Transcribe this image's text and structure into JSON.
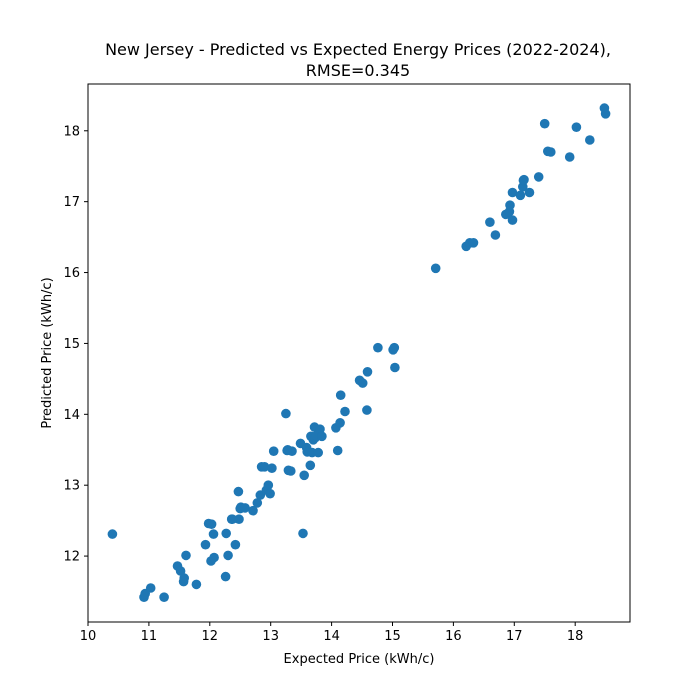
{
  "chart_data": {
    "type": "scatter",
    "title": "New Jersey - Predicted vs Expected Energy Prices (2022-2024),",
    "subtitle": "RMSE=0.345",
    "xlabel": "Expected Price (kWh/c)",
    "ylabel": "Predicted Price (kWh/c)",
    "xlim": [
      10.0,
      18.9
    ],
    "ylim": [
      11.07,
      18.66
    ],
    "xticks": [
      10,
      11,
      12,
      13,
      14,
      15,
      16,
      17,
      18
    ],
    "yticks": [
      12,
      13,
      14,
      15,
      16,
      17,
      18
    ],
    "grid": false,
    "marker_color": "#1f77b4",
    "series": [
      {
        "x": [
          10.4,
          10.92,
          10.94,
          11.03,
          11.25,
          11.47,
          11.52,
          11.57,
          11.58,
          11.61,
          11.78,
          11.93,
          11.98,
          12.02,
          12.03,
          12.06,
          12.07,
          12.26,
          12.27,
          12.3,
          12.36,
          12.42,
          12.47,
          12.48,
          12.5,
          12.51,
          12.58,
          12.71,
          12.78,
          12.83,
          12.85,
          12.9,
          12.93,
          12.96,
          12.99,
          13.02,
          13.05,
          13.25,
          13.29,
          13.28,
          13.33,
          13.35,
          13.27,
          13.49,
          13.55,
          13.59,
          13.6,
          13.65,
          13.66,
          13.68,
          13.7,
          13.72,
          13.73,
          13.75,
          13.78,
          13.81,
          13.84,
          14.07,
          14.1,
          14.14,
          14.15,
          14.22,
          14.46,
          14.51,
          14.58,
          14.59,
          14.76,
          15.01,
          15.03,
          15.04,
          15.71,
          16.21,
          16.27,
          16.33,
          16.6,
          16.69,
          16.86,
          16.92,
          16.93,
          16.97,
          16.97,
          17.1,
          17.14,
          17.15,
          17.16,
          17.25,
          17.4,
          17.5,
          17.55,
          17.6,
          17.91,
          18.02,
          18.24,
          18.48,
          18.5,
          13.53,
          12.37
        ],
        "y": [
          12.31,
          11.42,
          11.47,
          11.55,
          11.42,
          11.86,
          11.79,
          11.64,
          11.69,
          12.01,
          11.6,
          12.16,
          12.46,
          11.93,
          12.45,
          12.31,
          11.98,
          11.71,
          12.32,
          12.01,
          12.52,
          12.16,
          12.91,
          12.52,
          12.67,
          12.69,
          12.68,
          12.64,
          12.75,
          12.86,
          13.26,
          13.26,
          12.93,
          13.0,
          12.88,
          13.24,
          13.48,
          14.01,
          13.21,
          13.5,
          13.2,
          13.48,
          13.49,
          13.59,
          13.14,
          13.53,
          13.47,
          13.28,
          13.69,
          13.46,
          13.64,
          13.82,
          13.67,
          13.7,
          13.46,
          13.79,
          13.69,
          13.81,
          13.49,
          13.88,
          14.27,
          14.04,
          14.48,
          14.44,
          14.06,
          14.6,
          14.94,
          14.91,
          14.94,
          14.66,
          16.06,
          16.37,
          16.42,
          16.42,
          16.71,
          16.53,
          16.82,
          16.86,
          16.95,
          16.74,
          17.13,
          17.09,
          17.21,
          17.3,
          17.31,
          17.13,
          17.35,
          18.1,
          17.71,
          17.7,
          17.63,
          18.05,
          17.87,
          18.32,
          18.24,
          12.32,
          12.52
        ]
      }
    ]
  }
}
